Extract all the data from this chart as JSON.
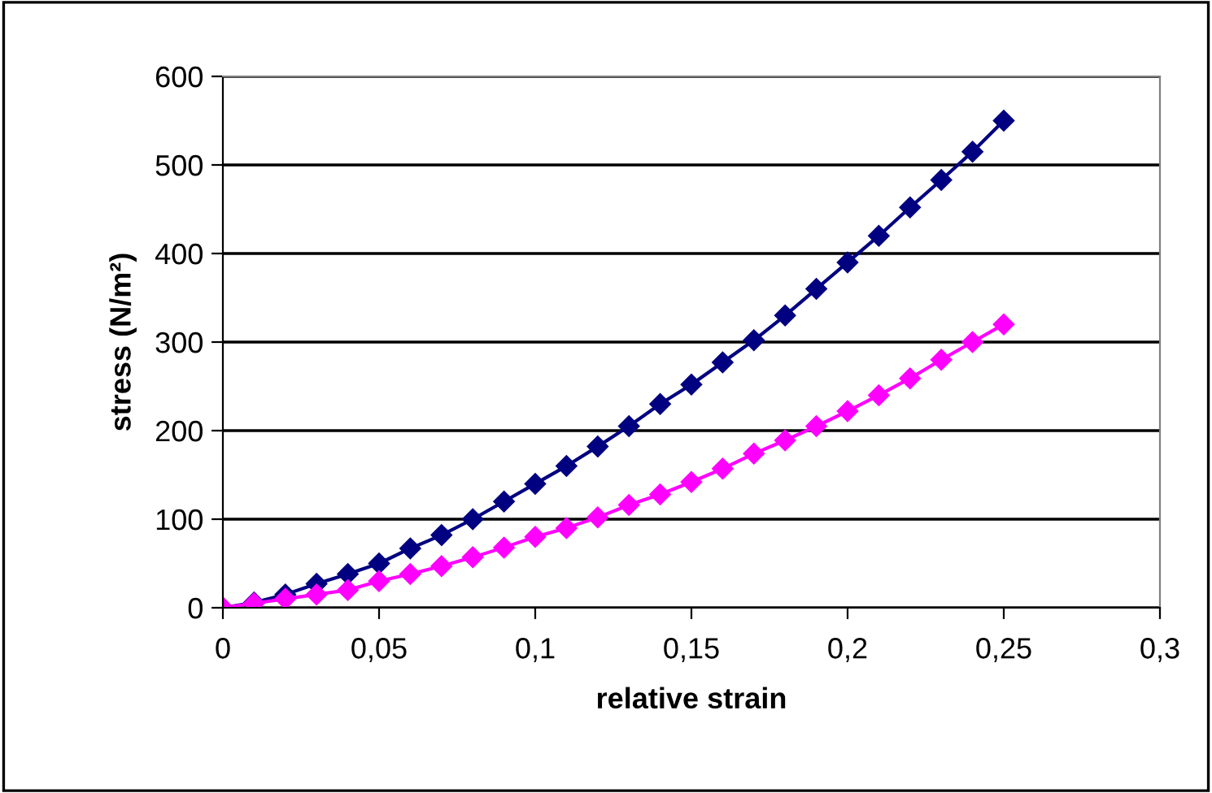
{
  "chart_data": {
    "type": "line",
    "xlabel": "relative strain",
    "ylabel": "stress (N/m²)",
    "x": [
      0,
      0.01,
      0.02,
      0.03,
      0.04,
      0.05,
      0.06,
      0.07,
      0.08,
      0.09,
      0.1,
      0.11,
      0.12,
      0.13,
      0.14,
      0.15,
      0.16,
      0.17,
      0.18,
      0.19,
      0.2,
      0.21,
      0.22,
      0.23,
      0.24,
      0.25
    ],
    "series": [
      {
        "color": "#000080",
        "values": [
          0,
          6,
          15,
          27,
          38,
          50,
          67,
          82,
          100,
          120,
          140,
          160,
          182,
          205,
          230,
          252,
          277,
          302,
          330,
          360,
          390,
          420,
          452,
          483,
          515,
          550
        ]
      },
      {
        "color": "#ff00ff",
        "values": [
          0,
          5,
          10,
          15,
          20,
          30,
          38,
          47,
          57,
          68,
          80,
          90,
          102,
          116,
          128,
          142,
          157,
          174,
          189,
          205,
          222,
          240,
          259,
          280,
          300,
          320
        ]
      }
    ],
    "xlim": [
      0,
      0.3
    ],
    "xticks": [
      0,
      {
        "value": 0.05,
        "label": "0,05"
      },
      {
        "value": 0.1,
        "label": "0,1"
      },
      {
        "value": 0.15,
        "label": "0,15"
      },
      {
        "value": 0.2,
        "label": "0,2"
      },
      {
        "value": 0.25,
        "label": "0,25"
      },
      {
        "value": 0.3,
        "label": "0,3"
      }
    ],
    "ylim": [
      0,
      600
    ],
    "yticks": [
      0,
      100,
      200,
      300,
      400,
      500,
      600
    ],
    "grid": "y",
    "legend": false,
    "marker": "diamond",
    "line_style": "solid"
  }
}
